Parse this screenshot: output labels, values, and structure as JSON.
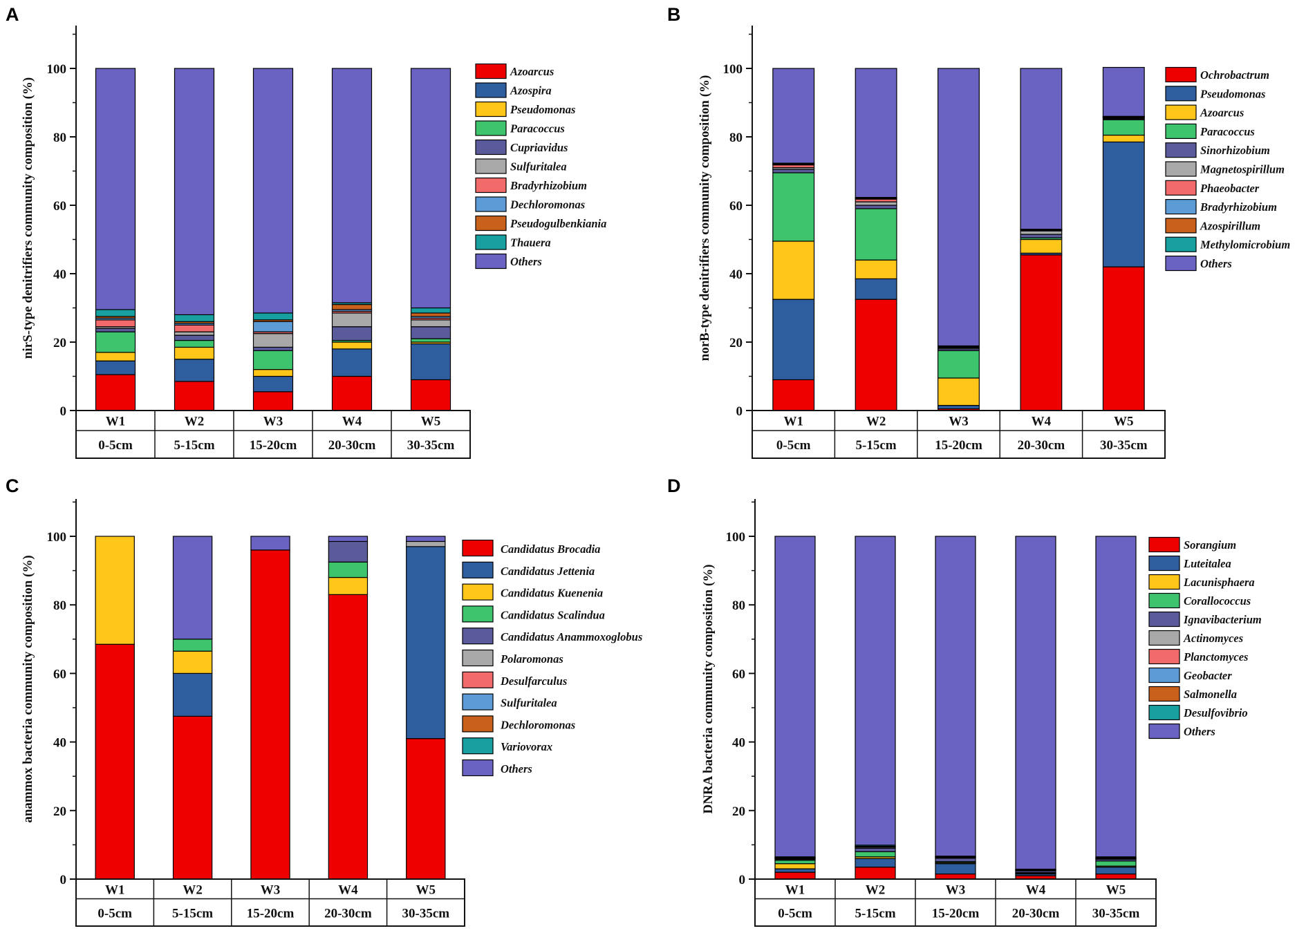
{
  "colors": {
    "red": "#ee0000",
    "blue": "#2f5e9e",
    "yellow": "#ffc61a",
    "green": "#3fc46e",
    "slate": "#5b5b9c",
    "gray": "#a8a8a8",
    "pink": "#f26b6b",
    "lightblue": "#5c9bd6",
    "orange": "#c8611b",
    "teal": "#18a0a0",
    "purple": "#6a63c2",
    "axis": "#111111"
  },
  "chart_data": [
    {
      "panel": "A",
      "type": "bar",
      "stacked": true,
      "ylabel": "nirS-type denitrifiers community composition (%)",
      "ylim": [
        0,
        110
      ],
      "yticks": [
        0,
        20,
        40,
        60,
        80,
        100
      ],
      "categories": [
        "W1",
        "W2",
        "W3",
        "W4",
        "W5"
      ],
      "sublabels": [
        "0-5cm",
        "5-15cm",
        "15-20cm",
        "20-30cm",
        "30-35cm"
      ],
      "legend_position": "right",
      "series": [
        {
          "name": "Azoarcus",
          "color": "red",
          "values": [
            10.5,
            8.5,
            5.5,
            10.0,
            9.0
          ]
        },
        {
          "name": "Azospira",
          "color": "blue",
          "values": [
            4.0,
            6.5,
            4.5,
            8.0,
            10.5
          ]
        },
        {
          "name": "Pseudomonas",
          "color": "yellow",
          "values": [
            2.5,
            3.5,
            2.0,
            2.0,
            0.5
          ]
        },
        {
          "name": "Paracoccus",
          "color": "green",
          "values": [
            6.0,
            2.0,
            5.5,
            0.5,
            1.0
          ]
        },
        {
          "name": "Cupriavidus",
          "color": "slate",
          "values": [
            1.0,
            1.5,
            1.0,
            4.0,
            3.5
          ]
        },
        {
          "name": "Sulfuritalea",
          "color": "gray",
          "values": [
            0.5,
            1.0,
            4.0,
            4.0,
            2.0
          ]
        },
        {
          "name": "Bradyrhizobium",
          "color": "pink",
          "values": [
            2.0,
            2.0,
            0.5,
            0.5,
            0.5
          ]
        },
        {
          "name": "Dechloromonas",
          "color": "lightblue",
          "values": [
            0.5,
            0.5,
            3.0,
            0.5,
            0.5
          ]
        },
        {
          "name": "Pseudogulbenkiania",
          "color": "orange",
          "values": [
            0.5,
            0.5,
            0.5,
            1.5,
            1.0
          ]
        },
        {
          "name": "Thauera",
          "color": "teal",
          "values": [
            2.0,
            2.0,
            2.0,
            0.5,
            1.5
          ]
        },
        {
          "name": "Others",
          "color": "purple",
          "values": [
            70.5,
            72.0,
            71.5,
            68.5,
            70.0
          ]
        }
      ]
    },
    {
      "panel": "B",
      "type": "bar",
      "stacked": true,
      "ylabel": "norB-type denitrifiers community composition (%)",
      "ylim": [
        0,
        110
      ],
      "yticks": [
        0,
        20,
        40,
        60,
        80,
        100
      ],
      "categories": [
        "W1",
        "W2",
        "W3",
        "W4",
        "W5"
      ],
      "sublabels": [
        "0-5cm",
        "5-15cm",
        "15-20cm",
        "20-30cm",
        "30-35cm"
      ],
      "legend_position": "right",
      "series": [
        {
          "name": "Ochrobactrum",
          "color": "red",
          "values": [
            9.0,
            32.5,
            0.5,
            45.5,
            42.0
          ]
        },
        {
          "name": "Pseudomonas",
          "color": "blue",
          "values": [
            23.5,
            6.0,
            1.0,
            0.5,
            36.5
          ]
        },
        {
          "name": "Azoarcus",
          "color": "yellow",
          "values": [
            17.0,
            5.5,
            8.0,
            4.0,
            2.0
          ]
        },
        {
          "name": "Paracoccus",
          "color": "green",
          "values": [
            20.0,
            15.0,
            8.0,
            0.5,
            4.5
          ]
        },
        {
          "name": "Sinorhizobium",
          "color": "slate",
          "values": [
            1.0,
            1.0,
            0.5,
            1.0,
            0.3
          ]
        },
        {
          "name": "Magnetospirillum",
          "color": "gray",
          "values": [
            0.5,
            1.0,
            0.3,
            1.0,
            0.2
          ]
        },
        {
          "name": "Phaeobacter",
          "color": "pink",
          "values": [
            0.8,
            0.8,
            0.2,
            0.2,
            0.2
          ]
        },
        {
          "name": "Bradyrhizobium",
          "color": "lightblue",
          "values": [
            0.2,
            0.2,
            0.2,
            0.1,
            0.1
          ]
        },
        {
          "name": "Azospirillum",
          "color": "orange",
          "values": [
            0.2,
            0.2,
            0.1,
            0.1,
            0.1
          ]
        },
        {
          "name": "Methylomicrobium",
          "color": "teal",
          "values": [
            0.1,
            0.1,
            0.1,
            0.1,
            0.1
          ]
        },
        {
          "name": "Others",
          "color": "purple",
          "values": [
            27.7,
            37.7,
            81.1,
            47.0,
            14.3
          ]
        }
      ]
    },
    {
      "panel": "C",
      "type": "bar",
      "stacked": true,
      "ylabel": "anammox bacteria community composition (%)",
      "ylim": [
        0,
        110
      ],
      "yticks": [
        0,
        20,
        40,
        60,
        80,
        100
      ],
      "categories": [
        "W1",
        "W2",
        "W3",
        "W4",
        "W5"
      ],
      "sublabels": [
        "0-5cm",
        "5-15cm",
        "15-20cm",
        "20-30cm",
        "30-35cm"
      ],
      "legend_position": "right",
      "series": [
        {
          "name": "Candidatus Brocadia",
          "color": "red",
          "values": [
            68.5,
            47.5,
            96.0,
            83.0,
            41.0
          ]
        },
        {
          "name": "Candidatus Jettenia",
          "color": "blue",
          "values": [
            0,
            12.5,
            0,
            0,
            56.0
          ]
        },
        {
          "name": "Candidatus Kuenenia",
          "color": "yellow",
          "values": [
            31.5,
            6.5,
            0,
            5.0,
            0
          ]
        },
        {
          "name": "Candidatus Scalindua",
          "color": "green",
          "values": [
            0,
            3.5,
            0,
            4.5,
            0
          ]
        },
        {
          "name": "Candidatus Anammoxoglobus",
          "color": "slate",
          "values": [
            0,
            0,
            0,
            6.0,
            0
          ]
        },
        {
          "name": "Polaromonas",
          "color": "gray",
          "values": [
            0,
            0,
            0,
            0,
            1.5
          ]
        },
        {
          "name": "Desulfarculus",
          "color": "pink",
          "values": [
            0,
            0,
            0,
            0,
            0
          ]
        },
        {
          "name": "Sulfuritalea",
          "color": "lightblue",
          "values": [
            0,
            0,
            0,
            0,
            0
          ]
        },
        {
          "name": "Dechloromonas",
          "color": "orange",
          "values": [
            0,
            0,
            0,
            0,
            0
          ]
        },
        {
          "name": "Variovorax",
          "color": "teal",
          "values": [
            0,
            0,
            0,
            0,
            0
          ]
        },
        {
          "name": "Others",
          "color": "purple",
          "values": [
            0,
            30.0,
            4.0,
            1.5,
            1.5
          ]
        }
      ]
    },
    {
      "panel": "D",
      "type": "bar",
      "stacked": true,
      "ylabel": "DNRA bacteria community composition (%)",
      "ylim": [
        0,
        110
      ],
      "yticks": [
        0,
        20,
        40,
        60,
        80,
        100
      ],
      "categories": [
        "W1",
        "W2",
        "W3",
        "W4",
        "W5"
      ],
      "sublabels": [
        "0-5cm",
        "5-15cm",
        "15-20cm",
        "20-30cm",
        "30-35cm"
      ],
      "legend_position": "right",
      "series": [
        {
          "name": "Sorangium",
          "color": "red",
          "values": [
            2.0,
            3.5,
            1.5,
            1.0,
            1.5
          ]
        },
        {
          "name": "Luteitalea",
          "color": "blue",
          "values": [
            1.0,
            2.5,
            3.0,
            0.5,
            2.0
          ]
        },
        {
          "name": "Lacunisphaera",
          "color": "yellow",
          "values": [
            1.5,
            0.5,
            0.3,
            0.2,
            0.3
          ]
        },
        {
          "name": "Corallococcus",
          "color": "green",
          "values": [
            1.0,
            1.5,
            0.3,
            0.2,
            1.5
          ]
        },
        {
          "name": "Ignavibacterium",
          "color": "slate",
          "values": [
            0.3,
            1.0,
            1.0,
            0.5,
            0.5
          ]
        },
        {
          "name": "Actinomyces",
          "color": "gray",
          "values": [
            0.2,
            0.3,
            0.2,
            0.1,
            0.2
          ]
        },
        {
          "name": "Planctomyces",
          "color": "pink",
          "values": [
            0.1,
            0.1,
            0.1,
            0.1,
            0.1
          ]
        },
        {
          "name": "Geobacter",
          "color": "lightblue",
          "values": [
            0.1,
            0.1,
            0.1,
            0.1,
            0.1
          ]
        },
        {
          "name": "Salmonella",
          "color": "orange",
          "values": [
            0.1,
            0.1,
            0.1,
            0.1,
            0.1
          ]
        },
        {
          "name": "Desulfovibrio",
          "color": "teal",
          "values": [
            0.2,
            0.3,
            0.1,
            0.1,
            0.2
          ]
        },
        {
          "name": "Others",
          "color": "purple",
          "values": [
            93.5,
            90.1,
            93.3,
            97.1,
            93.5
          ]
        }
      ]
    }
  ]
}
